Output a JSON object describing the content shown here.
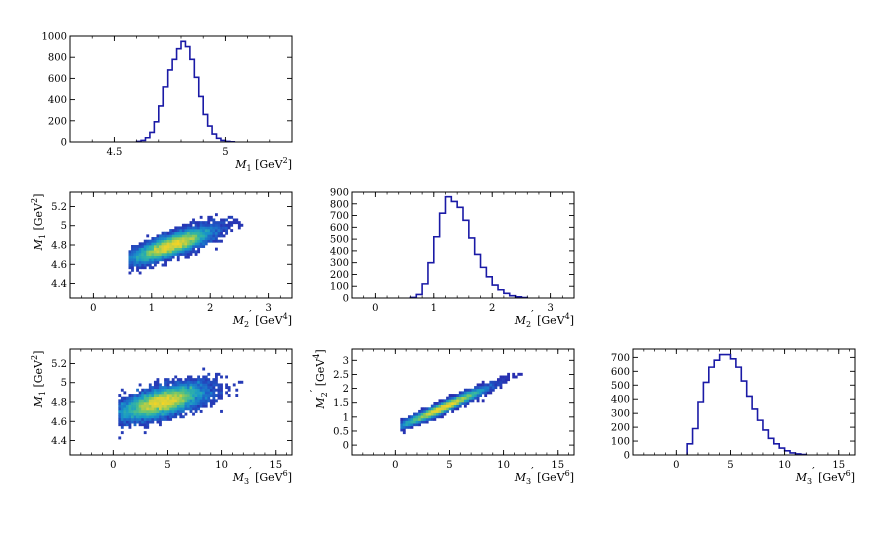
{
  "colors": {
    "hist_line": "#1a1aa6",
    "colormap": [
      "#2c1fa8",
      "#1e5fc8",
      "#1898c8",
      "#35b79e",
      "#86c95c",
      "#d2d03c",
      "#f5d423"
    ]
  },
  "chart_data": [
    {
      "id": "m1-hist",
      "type": "histogram",
      "xlabel": "M_1 [GeV^2]",
      "ylabel": "",
      "xlim": [
        4.3,
        5.3
      ],
      "ylim": [
        0,
        1000
      ],
      "xticks": [
        4.5,
        5
      ],
      "yticks": [
        0,
        200,
        400,
        600,
        800,
        1000
      ],
      "bin_width": 0.02,
      "bins_x": [
        4.6,
        4.62,
        4.64,
        4.66,
        4.68,
        4.7,
        4.72,
        4.74,
        4.76,
        4.78,
        4.8,
        4.82,
        4.84,
        4.86,
        4.88,
        4.9,
        4.92,
        4.94,
        4.96,
        4.98,
        5.0,
        5.02
      ],
      "values": [
        5,
        15,
        40,
        90,
        190,
        340,
        520,
        680,
        780,
        880,
        950,
        900,
        780,
        610,
        430,
        260,
        150,
        75,
        35,
        15,
        6,
        2
      ]
    },
    {
      "id": "m2-vs-m1",
      "type": "heatmap",
      "xlabel": "M_2' [GeV^4]",
      "ylabel": "M_1 [GeV^2]",
      "xlim": [
        -0.4,
        3.4
      ],
      "ylim": [
        4.25,
        5.35
      ],
      "xticks": [
        0,
        1,
        2,
        3
      ],
      "yticks": [
        4.4,
        4.6,
        4.8,
        5,
        5.2
      ],
      "x_mean": 1.35,
      "x_sd": 0.33,
      "x_range": [
        0.6,
        2.55
      ],
      "y_mean": 4.8,
      "y_sd": 0.085,
      "correlation": 0.8
    },
    {
      "id": "m2-hist",
      "type": "histogram",
      "xlabel": "M_2' [GeV^4]",
      "ylabel": "",
      "xlim": [
        -0.4,
        3.4
      ],
      "ylim": [
        0,
        900
      ],
      "xticks": [
        0,
        1,
        2,
        3
      ],
      "yticks": [
        0,
        100,
        200,
        300,
        400,
        500,
        600,
        700,
        800,
        900
      ],
      "bin_width": 0.1,
      "bins_x": [
        0.6,
        0.7,
        0.8,
        0.9,
        1.0,
        1.1,
        1.2,
        1.3,
        1.4,
        1.5,
        1.6,
        1.7,
        1.8,
        1.9,
        2.0,
        2.1,
        2.2,
        2.3,
        2.4,
        2.5
      ],
      "values": [
        5,
        30,
        120,
        300,
        520,
        720,
        860,
        820,
        770,
        660,
        510,
        370,
        260,
        180,
        110,
        70,
        40,
        20,
        10,
        4
      ]
    },
    {
      "id": "m3-vs-m1",
      "type": "heatmap",
      "xlabel": "M_3' [GeV^6]",
      "ylabel": "M_1 [GeV^2]",
      "xlim": [
        -4,
        16.5
      ],
      "ylim": [
        4.25,
        5.35
      ],
      "xticks": [
        0,
        5,
        10,
        15
      ],
      "yticks": [
        4.4,
        4.6,
        4.8,
        5,
        5.2
      ],
      "x_mean": 4.5,
      "x_sd": 1.9,
      "x_range": [
        0.5,
        12
      ],
      "y_mean": 4.8,
      "y_sd": 0.085,
      "correlation": 0.6
    },
    {
      "id": "m3-vs-m2",
      "type": "heatmap",
      "xlabel": "M_3' [GeV^6]",
      "ylabel": "M_2' [GeV^4]",
      "xlim": [
        -4,
        16.5
      ],
      "ylim": [
        -0.35,
        3.4
      ],
      "xticks": [
        0,
        5,
        10,
        15
      ],
      "yticks": [
        0,
        0.5,
        1,
        1.5,
        2,
        2.5,
        3
      ],
      "x_mean": 4.5,
      "x_sd": 1.9,
      "x_range": [
        0.5,
        12
      ],
      "y_mean": 1.35,
      "y_sd": 0.33,
      "correlation": 0.97
    },
    {
      "id": "m3-hist",
      "type": "histogram",
      "xlabel": "M_3' [GeV^6]",
      "ylabel": "",
      "xlim": [
        -4,
        16.5
      ],
      "ylim": [
        0,
        760
      ],
      "xticks": [
        0,
        5,
        10,
        15
      ],
      "yticks": [
        0,
        100,
        200,
        300,
        400,
        500,
        600,
        700
      ],
      "bin_width": 0.5,
      "bins_x": [
        1.0,
        1.5,
        2.0,
        2.5,
        3.0,
        3.5,
        4.0,
        4.5,
        5.0,
        5.5,
        6.0,
        6.5,
        7.0,
        7.5,
        8.0,
        8.5,
        9.0,
        9.5,
        10.0,
        10.5,
        11.0,
        11.5
      ],
      "values": [
        80,
        190,
        380,
        520,
        630,
        680,
        720,
        720,
        690,
        630,
        530,
        420,
        330,
        250,
        180,
        120,
        80,
        50,
        30,
        15,
        8,
        3
      ]
    }
  ]
}
